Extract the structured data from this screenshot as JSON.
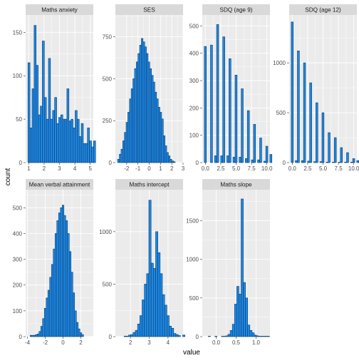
{
  "chart_data": {
    "type": "bar",
    "layout": "facet_wrap",
    "xlabel": "value",
    "ylabel": "count",
    "bar_color": "#1e88e5",
    "bar_outline": "#0d3b66",
    "panel_background": "#ebebeb",
    "strip_background": "#d9d9d9",
    "panels": [
      {
        "id": "maths-anxiety",
        "title": "Maths anxiety",
        "xlim": [
          0.8,
          5.2
        ],
        "ylim": [
          0,
          170
        ],
        "xticks": [
          1,
          2,
          3,
          4,
          5
        ],
        "xtick_labels": [
          "1",
          "2",
          "3",
          "4",
          "5"
        ],
        "yticks": [
          0,
          50,
          100,
          150
        ],
        "ytick_labels": [
          "0",
          "50",
          "100",
          "150"
        ],
        "bin_start": 0.95,
        "bin_width": 0.1333,
        "counts": [
          115,
          40,
          85,
          158,
          112,
          55,
          65,
          140,
          75,
          50,
          120,
          50,
          60,
          75,
          45,
          52,
          55,
          50,
          50,
          85,
          48,
          50,
          40,
          60,
          50,
          30,
          45,
          22,
          22,
          40,
          25,
          18,
          25
        ]
      },
      {
        "id": "ses",
        "title": "SES",
        "xlim": [
          -3.0,
          3.0
        ],
        "ylim": [
          0,
          880
        ],
        "xticks": [
          -2,
          -1,
          0,
          1,
          2,
          3
        ],
        "xtick_labels": [
          "-2",
          "-1",
          "0",
          "1",
          "2",
          "3"
        ],
        "yticks": [
          0,
          250,
          500,
          750
        ],
        "ytick_labels": [
          "0",
          "250",
          "500",
          "750"
        ],
        "bin_start": -2.8,
        "bin_width": 0.15,
        "counts": [
          20,
          50,
          80,
          130,
          180,
          240,
          300,
          380,
          440,
          500,
          560,
          600,
          650,
          700,
          740,
          720,
          690,
          650,
          600,
          560,
          520,
          480,
          420,
          380,
          330,
          300,
          260,
          160,
          100,
          60,
          40,
          20,
          10,
          5
        ]
      },
      {
        "id": "sdq-9",
        "title": "SDQ (age 9)",
        "xlim": [
          -0.5,
          10.5
        ],
        "ylim": [
          0,
          540
        ],
        "xticks": [
          0.0,
          2.5,
          5.0,
          7.5,
          10.0
        ],
        "xtick_labels": [
          "0.0",
          "2.5",
          "5.0",
          "7.5",
          "10.0"
        ],
        "yticks": [
          0,
          100,
          200,
          300,
          400,
          500
        ],
        "ytick_labels": [
          "0",
          "100",
          "200",
          "300",
          "400",
          "500"
        ],
        "bin_start": -0.17,
        "bin_width": 0.333,
        "counts": [
          425,
          0,
          0,
          430,
          0,
          25,
          505,
          0,
          25,
          460,
          0,
          25,
          380,
          0,
          20,
          320,
          0,
          20,
          270,
          0,
          15,
          190,
          0,
          10,
          140,
          0,
          10,
          90,
          0,
          5,
          60,
          0,
          30
        ]
      },
      {
        "id": "sdq-12",
        "title": "SDQ (age 12)",
        "xlim": [
          -0.5,
          10.5
        ],
        "ylim": [
          0,
          1480
        ],
        "xticks": [
          0.0,
          2.5,
          5.0,
          7.5,
          10.0
        ],
        "xtick_labels": [
          "0.0",
          "2.5",
          "5.0",
          "7.5",
          "10.0"
        ],
        "yticks": [
          0,
          500,
          1000
        ],
        "ytick_labels": [
          "0",
          "500",
          "1000"
        ],
        "bin_start": -0.17,
        "bin_width": 0.333,
        "counts": [
          1410,
          0,
          20,
          1120,
          0,
          20,
          1000,
          0,
          15,
          800,
          0,
          10,
          600,
          0,
          10,
          500,
          0,
          5,
          300,
          0,
          5,
          250,
          0,
          5,
          150,
          0,
          5,
          100,
          0,
          5,
          40,
          0,
          20
        ]
      },
      {
        "id": "mean-verbal",
        "title": "Mean verbal attainment",
        "xlim": [
          -4.2,
          3.4
        ],
        "ylim": [
          0,
          570
        ],
        "xticks": [
          -4,
          -2,
          0,
          2
        ],
        "xtick_labels": [
          "-4",
          "-2",
          "0",
          "2"
        ],
        "yticks": [
          0,
          100,
          200,
          300,
          400,
          500
        ],
        "ytick_labels": [
          "0",
          "100",
          "200",
          "300",
          "400",
          "500"
        ],
        "bin_start": -3.7,
        "bin_width": 0.2,
        "counts": [
          5,
          5,
          5,
          8,
          10,
          20,
          40,
          70,
          110,
          150,
          180,
          230,
          280,
          340,
          400,
          450,
          480,
          500,
          510,
          470,
          450,
          400,
          330,
          250,
          170,
          100,
          55,
          30,
          15,
          8
        ]
      },
      {
        "id": "maths-intercept",
        "title": "Maths intercept",
        "xlim": [
          1.2,
          4.8
        ],
        "ylim": [
          0,
          1400
        ],
        "xticks": [
          2,
          3,
          4
        ],
        "xtick_labels": [
          "2",
          "3",
          "4"
        ],
        "yticks": [
          0,
          500,
          1000
        ],
        "ytick_labels": [
          "0",
          "500",
          "1000"
        ],
        "bin_start": 1.3,
        "bin_width": 0.12,
        "counts": [
          0,
          0,
          0,
          5,
          5,
          15,
          20,
          40,
          60,
          120,
          200,
          350,
          500,
          600,
          1300,
          700,
          650,
          1000,
          800,
          600,
          400,
          300,
          200,
          100,
          80,
          30,
          20,
          10,
          0,
          15
        ]
      },
      {
        "id": "maths-slope",
        "title": "Maths slope",
        "xlim": [
          -0.35,
          1.35
        ],
        "ylim": [
          0,
          1900
        ],
        "xticks": [
          0.0,
          0.5,
          1.0
        ],
        "xtick_labels": [
          "0.0",
          "0.5",
          "1.0"
        ],
        "yticks": [
          0,
          500,
          1000,
          1500
        ],
        "ytick_labels": [
          "0",
          "500",
          "1000",
          "1500"
        ],
        "bin_start": -0.2,
        "bin_width": 0.055,
        "counts": [
          5,
          0,
          0,
          5,
          0,
          0,
          5,
          5,
          10,
          30,
          80,
          160,
          420,
          650,
          550,
          1780,
          700,
          500,
          150,
          80,
          50,
          20,
          10,
          5,
          5,
          5,
          5,
          5
        ]
      }
    ]
  }
}
